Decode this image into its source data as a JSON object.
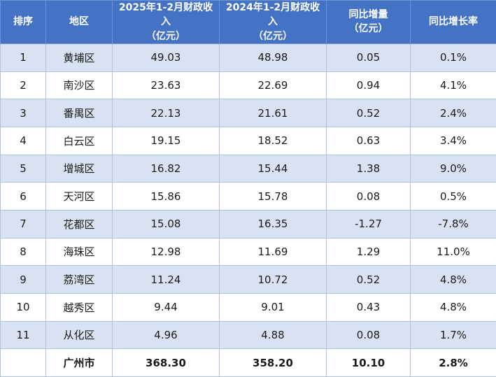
{
  "table": {
    "headers": [
      "排序",
      "地区",
      "2025年1-2月财政收入\n（亿元）",
      "2024年1-2月财政收入\n（亿元）",
      "同比增量\n（亿元）",
      "同比增长率"
    ],
    "rows": [
      [
        "1",
        "黄埔区",
        "49.03",
        "48.98",
        "0.05",
        "0.1%"
      ],
      [
        "2",
        "南沙区",
        "23.63",
        "22.69",
        "0.94",
        "4.1%"
      ],
      [
        "3",
        "番禺区",
        "22.13",
        "21.61",
        "0.52",
        "2.4%"
      ],
      [
        "4",
        "白云区",
        "19.15",
        "18.52",
        "0.63",
        "3.4%"
      ],
      [
        "5",
        "增城区",
        "16.82",
        "15.44",
        "1.38",
        "9.0%"
      ],
      [
        "6",
        "天河区",
        "15.86",
        "15.78",
        "0.08",
        "0.5%"
      ],
      [
        "7",
        "花都区",
        "15.08",
        "16.35",
        "-1.27",
        "-7.8%"
      ],
      [
        "8",
        "海珠区",
        "12.98",
        "11.69",
        "1.29",
        "11.0%"
      ],
      [
        "9",
        "荔湾区",
        "11.24",
        "10.72",
        "0.52",
        "4.8%"
      ],
      [
        "10",
        "越秀区",
        "9.44",
        "9.01",
        "0.43",
        "4.8%"
      ],
      [
        "11",
        "从化区",
        "4.96",
        "4.88",
        "0.08",
        "1.7%"
      ],
      [
        "",
        "广州市",
        "368.30",
        "358.20",
        "10.10",
        "2.8%"
      ]
    ]
  },
  "chart_data": {
    "type": "table",
    "title": "",
    "columns": [
      "排序",
      "地区",
      "2025年1-2月财政收入（亿元）",
      "2024年1-2月财政收入（亿元）",
      "同比增量（亿元）",
      "同比增长率"
    ],
    "rows": [
      {
        "rank": 1,
        "region": "黄埔区",
        "rev_2025": 49.03,
        "rev_2024": 48.98,
        "yoy_change": 0.05,
        "yoy_rate_pct": 0.1
      },
      {
        "rank": 2,
        "region": "南沙区",
        "rev_2025": 23.63,
        "rev_2024": 22.69,
        "yoy_change": 0.94,
        "yoy_rate_pct": 4.1
      },
      {
        "rank": 3,
        "region": "番禺区",
        "rev_2025": 22.13,
        "rev_2024": 21.61,
        "yoy_change": 0.52,
        "yoy_rate_pct": 2.4
      },
      {
        "rank": 4,
        "region": "白云区",
        "rev_2025": 19.15,
        "rev_2024": 18.52,
        "yoy_change": 0.63,
        "yoy_rate_pct": 3.4
      },
      {
        "rank": 5,
        "region": "增城区",
        "rev_2025": 16.82,
        "rev_2024": 15.44,
        "yoy_change": 1.38,
        "yoy_rate_pct": 9.0
      },
      {
        "rank": 6,
        "region": "天河区",
        "rev_2025": 15.86,
        "rev_2024": 15.78,
        "yoy_change": 0.08,
        "yoy_rate_pct": 0.5
      },
      {
        "rank": 7,
        "region": "花都区",
        "rev_2025": 15.08,
        "rev_2024": 16.35,
        "yoy_change": -1.27,
        "yoy_rate_pct": -7.8
      },
      {
        "rank": 8,
        "region": "海珠区",
        "rev_2025": 12.98,
        "rev_2024": 11.69,
        "yoy_change": 1.29,
        "yoy_rate_pct": 11.0
      },
      {
        "rank": 9,
        "region": "荔湾区",
        "rev_2025": 11.24,
        "rev_2024": 10.72,
        "yoy_change": 0.52,
        "yoy_rate_pct": 4.8
      },
      {
        "rank": 10,
        "region": "越秀区",
        "rev_2025": 9.44,
        "rev_2024": 9.01,
        "yoy_change": 0.43,
        "yoy_rate_pct": 4.8
      },
      {
        "rank": 11,
        "region": "从化区",
        "rev_2025": 4.96,
        "rev_2024": 4.88,
        "yoy_change": 0.08,
        "yoy_rate_pct": 1.7
      },
      {
        "rank": null,
        "region": "广州市",
        "rev_2025": 368.3,
        "rev_2024": 358.2,
        "yoy_change": 10.1,
        "yoy_rate_pct": 2.8
      }
    ]
  },
  "colors": {
    "header_bg": "#4472c4",
    "header_text": "#ffffff",
    "alt_row_bg": "#d9e2f3",
    "row_bg": "#ffffff",
    "grid_line": "#a9c4e4",
    "body_text": "#1a1a1a"
  }
}
